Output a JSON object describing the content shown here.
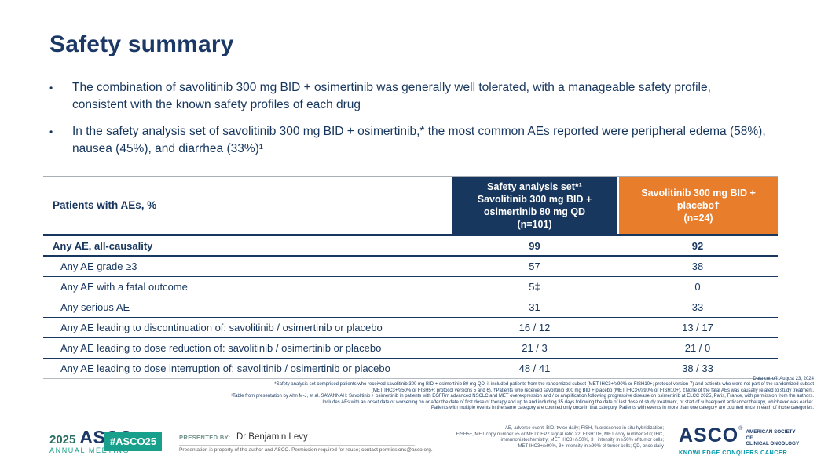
{
  "slide": {
    "title": "Safety summary",
    "bullets": [
      "The combination of savolitinib 300 mg BID + osimertinib was generally well tolerated, with a manageable safety profile, consistent with the known safety profiles of each drug",
      "In the safety analysis set of savolitinib 300 mg BID + osimertinib,* the most common AEs reported were peripheral edema (58%), nausea (45%), and diarrhea (33%)¹"
    ]
  },
  "table": {
    "col1_header": "Patients with AEs, %",
    "col2_header": "Safety analysis set*¹\nSavolitinib 300 mg BID +\nosimertinib 80 mg QD\n(n=101)",
    "col3_header": "Savolitinib 300 mg BID +\nplacebo†\n(n=24)",
    "rows": [
      {
        "label": "Any AE, all-causality",
        "v1": "99",
        "v2": "92"
      },
      {
        "label": "Any AE grade ≥3",
        "v1": "57",
        "v2": "38"
      },
      {
        "label": "Any AE with a fatal outcome",
        "v1": "5‡",
        "v2": "0"
      },
      {
        "label": "Any serious AE",
        "v1": "31",
        "v2": "33"
      },
      {
        "label": "Any AE leading to discontinuation of: savolitinib / osimertinib or placebo",
        "v1": "16 / 12",
        "v2": "13 / 17"
      },
      {
        "label": "Any AE leading to dose reduction of: savolitinib / osimertinib or placebo",
        "v1": "21 / 3",
        "v2": "21 / 0"
      },
      {
        "label": "Any AE leading to dose interruption of: savolitinib / osimertinib or placebo",
        "v1": "48 / 41",
        "v2": "38 / 33"
      }
    ]
  },
  "footnotes": [
    "Data cut-off: August 23, 2024",
    "*Safety analysis set comprised patients who received savolitinib 300 mg BID + osimertinib 80 mg QD; it included patients from the randomized subset (MET IHC3+/≥90% or FISH10+; protocol version 7) and patients who were not part of the randomized subset",
    "(MET IHC3+/≥50% or FISH5+; protocol versions 5 and 6). †Patients who received savolitinib 300 mg BID + placebo (MET IHC3+/≥90% or FISH10+). ‡None of the fatal AEs was causally related to study treatment.",
    "¹Table from presentation by Ahn M-J, et al. SAVANNAH: Savolitinib + osimertinib in patients with EGFRm advanced NSCLC and MET overexpression and / or amplification following progressive disease on osimertinib at ELCC 2025, Paris, France, with permission from the authors.",
    "Includes AEs with an onset date or worsening on or after the date of first dose of therapy and up to and including 35 days following the date of last dose of study treatment, or start of subsequent anticancer therapy, whichever was earlier.",
    "Patients with multiple events in the same category are counted only once in that category. Patients with events in more than one category are counted once in each of those categories."
  ],
  "footer": {
    "left_logo": {
      "year": "2025",
      "asco": "ASCO",
      "mark": "®",
      "meeting": "ANNUAL MEETING"
    },
    "hashtag": "#ASCO25",
    "presented_label": "PRESENTED BY:",
    "presenter": "Dr Benjamin Levy",
    "permission": "Presentation is property of the author and ASCO. Permission required for reuse; contact permissions@asco.org.",
    "abbreviations": [
      "AE, adverse event; BID, twice daily; FISH, fluorescence in situ hybridization;",
      "FISH5+, MET copy number ≥5 or MET:CEP7 signal ratio ≥2; FISH10+, MET copy number ≥10; IHC,",
      "immunohistochemistry; MET IHC3+/≥50%, 3+ intensity in ≥50% of tumor cells;",
      "MET IHC3+/≥90%, 3+ intensity in ≥90% of tumor cells; QD, once daily"
    ],
    "right_logo": {
      "asco": "ASCO",
      "mark": "®",
      "society": "AMERICAN SOCIETY OF\nCLINICAL ONCOLOGY",
      "tagline": "KNOWLEDGE CONQUERS CANCER"
    }
  },
  "colors": {
    "navy": "#17375E",
    "orange": "#E87D2B",
    "teal": "#18A08C",
    "tagline_teal": "#0097A9"
  }
}
